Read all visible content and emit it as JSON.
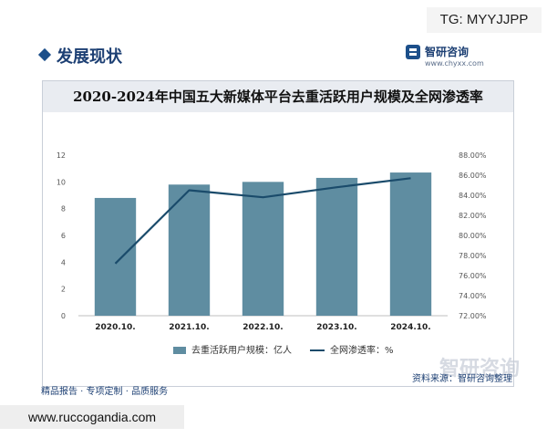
{
  "watermark_tag": "TG: MYYJJPP",
  "brand": {
    "name": "智研咨询",
    "url": "www.chyxx.com"
  },
  "section_heading": "发展现状",
  "footer_left": "精品报告 · 专项定制 · 品质服务",
  "source": "资料来源：智研咨询整理",
  "bottom_watermark": "智研咨询",
  "site_banner": "www.ruccogandia.com",
  "colors": {
    "bar": "#5f8da1",
    "line": "#1a4b6b",
    "title_bg": "#e9ecf1",
    "accent": "#1c3f73"
  },
  "chart_data": {
    "type": "bar",
    "title": "2020-2024年中国五大新媒体平台去重活跃用户规模及全网渗透率",
    "categories": [
      "2020.10.",
      "2021.10.",
      "2022.10.",
      "2023.10.",
      "2024.10."
    ],
    "series": [
      {
        "name": "去重活跃用户规模：亿人",
        "type": "bar",
        "axis": "left",
        "values": [
          8.8,
          9.8,
          10.0,
          10.3,
          10.7
        ]
      },
      {
        "name": "全网渗透率：%",
        "type": "line",
        "axis": "right",
        "values": [
          77.2,
          84.5,
          83.8,
          84.8,
          85.7
        ]
      }
    ],
    "y_left": {
      "min": 0,
      "max": 12,
      "ticks": [
        "0",
        "2",
        "4",
        "6",
        "8",
        "10",
        "12"
      ]
    },
    "y_right": {
      "min": 72,
      "max": 88,
      "ticks": [
        "72.00%",
        "74.00%",
        "76.00%",
        "78.00%",
        "80.00%",
        "82.00%",
        "84.00%",
        "86.00%",
        "88.00%"
      ]
    },
    "grid": false,
    "legend": "bottom"
  }
}
